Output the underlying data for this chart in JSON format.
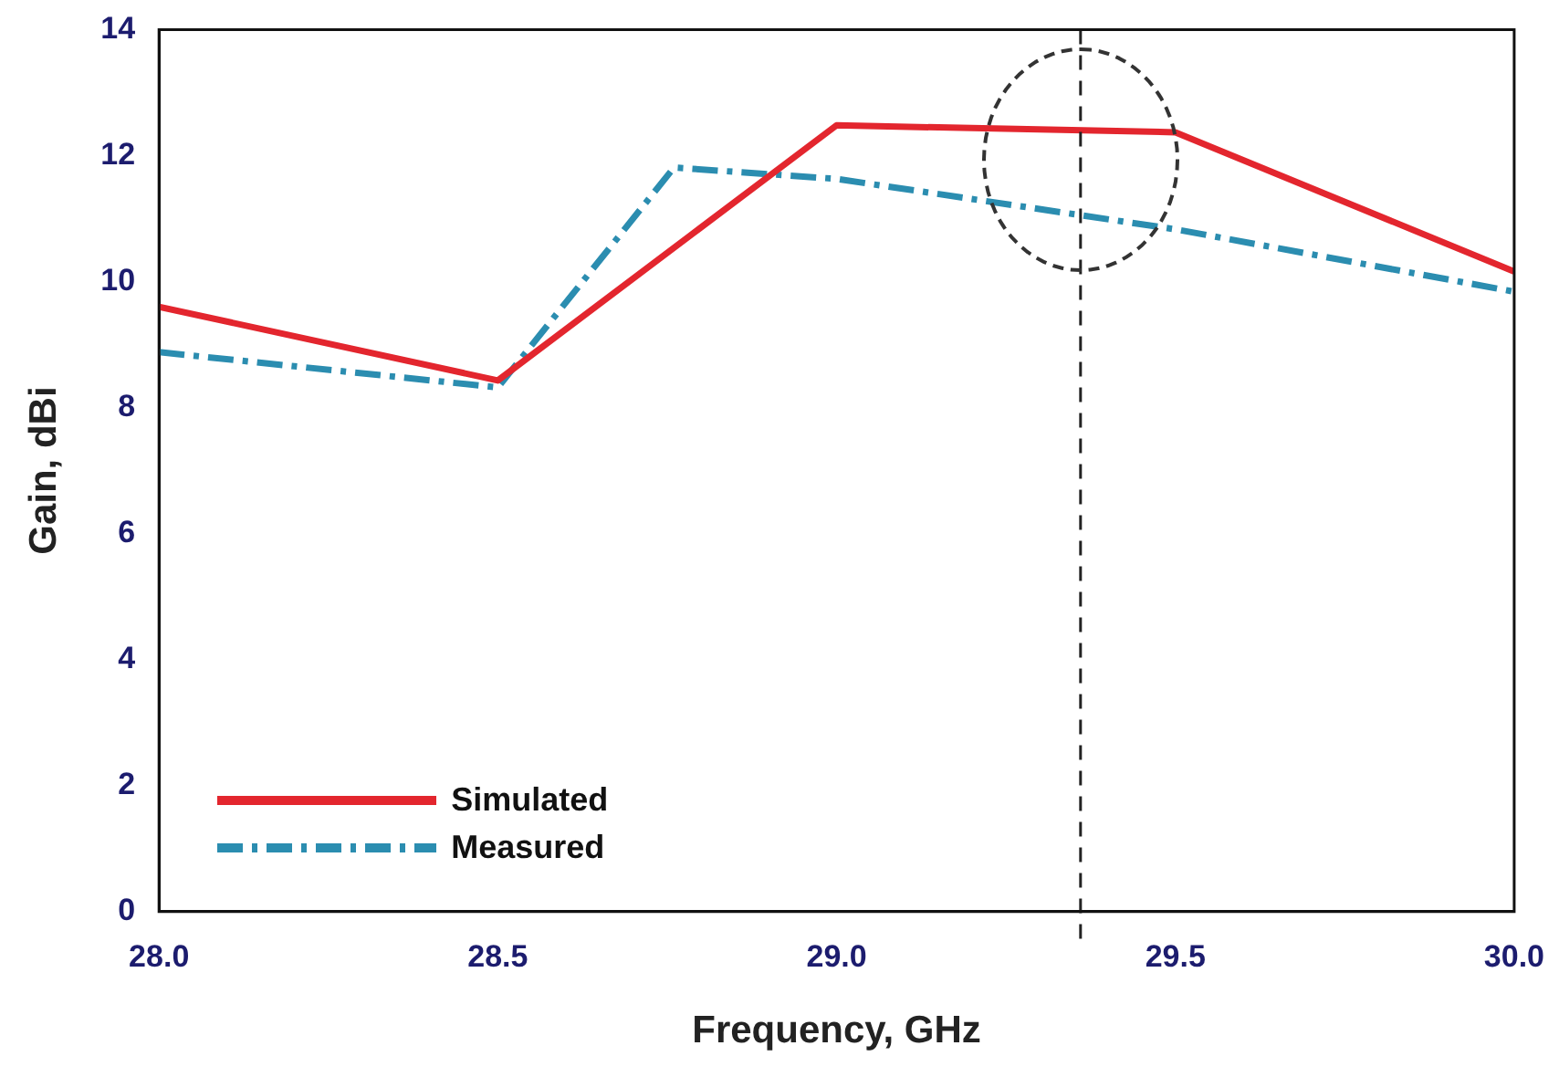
{
  "chart_data": {
    "type": "line",
    "xlabel": "Frequency, GHz",
    "ylabel": "Gain, dBi",
    "series": [
      {
        "name": "Simulated",
        "color": "#e3262e",
        "line_style": "solid",
        "x": [
          28.0,
          28.5,
          29.0,
          29.5,
          30.0
        ],
        "values": [
          9.6,
          8.43,
          12.48,
          12.37,
          10.16
        ]
      },
      {
        "name": "Measured",
        "color": "#2b8db0",
        "line_style": "dashdot",
        "x": [
          28.0,
          28.5,
          28.76,
          29.0,
          29.5,
          30.0
        ],
        "values": [
          8.88,
          8.32,
          11.81,
          11.63,
          10.83,
          9.84
        ]
      }
    ],
    "xlim": [
      28.0,
      30.0
    ],
    "xticks": [
      {
        "value": 28.0,
        "label": "28.0"
      },
      {
        "value": 28.5,
        "label": "28.5"
      },
      {
        "value": 29.0,
        "label": "29.0"
      },
      {
        "value": 29.5,
        "label": "29.5"
      },
      {
        "value": 30.0,
        "label": "30.0"
      }
    ],
    "ylim": [
      0,
      14
    ],
    "yticks": [
      0,
      2,
      4,
      6,
      8,
      10,
      12,
      14
    ],
    "ref_lines": [
      {
        "axis": "x",
        "value": 29.36,
        "color": "#222222",
        "line_style": "dashed"
      }
    ],
    "grid": false,
    "legend": "bottom left",
    "marker": "none"
  }
}
